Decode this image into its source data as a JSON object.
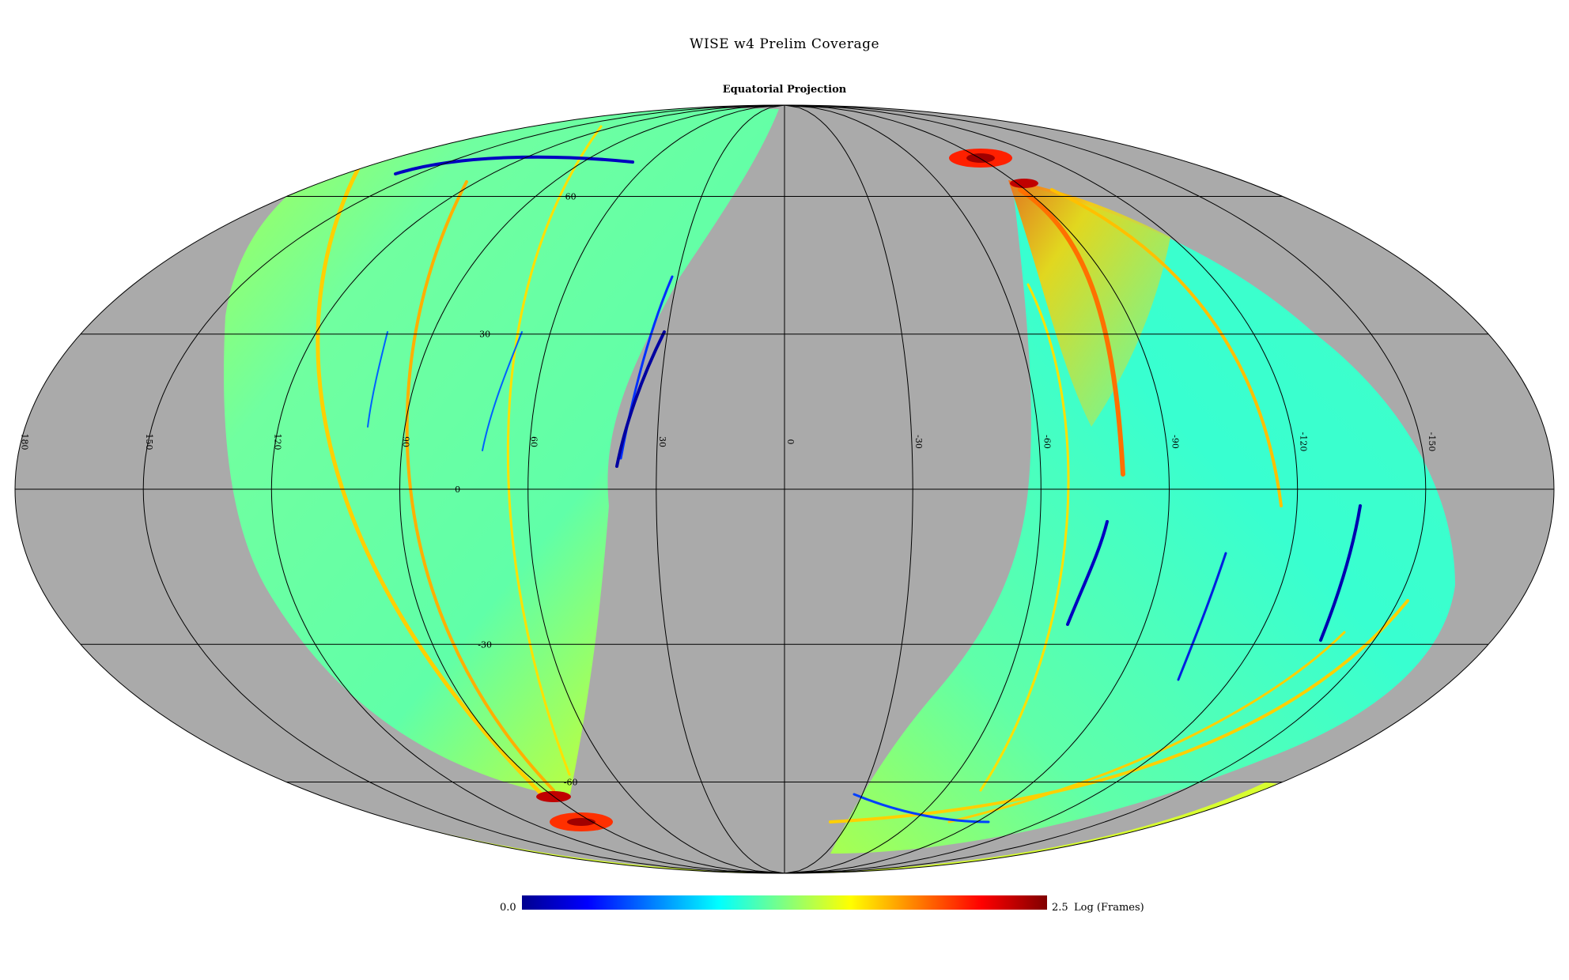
{
  "title": "WISE w4 Prelim Coverage",
  "subtitle": "Equatorial Projection",
  "projection": "mollweide",
  "colors": {
    "background": "#ffffff",
    "no_coverage": "#aaaaaa",
    "grid": "#000000",
    "colormap": [
      "#00008f",
      "#0000ff",
      "#0080ff",
      "#00ffff",
      "#80ff80",
      "#ffff00",
      "#ff8000",
      "#ff0000",
      "#800000"
    ]
  },
  "graticule": {
    "longitude_labels": [
      "180",
      "150",
      "120",
      "90",
      "60",
      "30",
      "0",
      "-30",
      "-60",
      "-90",
      "-120",
      "-150"
    ],
    "latitude_labels": [
      "60",
      "30",
      "0",
      "-30",
      "-60"
    ]
  },
  "colorbar": {
    "min_label": "0.0",
    "max_label": "2.5",
    "units": "Log (Frames)",
    "range": [
      0.0,
      2.5
    ]
  },
  "map_data": {
    "type": "heatmap",
    "quantity": "Log (Frames)",
    "coverage_bands": [
      {
        "name": "left-lobe",
        "typical_value": 1.3,
        "edge_value": 2.2
      },
      {
        "name": "right-lobe",
        "typical_value": 1.2,
        "edge_value": 2.1
      }
    ],
    "hotspots": [
      {
        "ra": -40,
        "dec": 68,
        "value": 2.4
      },
      {
        "ra": -60,
        "dec": 62,
        "value": 2.4
      },
      {
        "ra": 60,
        "dec": -64,
        "value": 2.4
      },
      {
        "ra": 70,
        "dec": -68,
        "value": 2.3
      }
    ]
  }
}
